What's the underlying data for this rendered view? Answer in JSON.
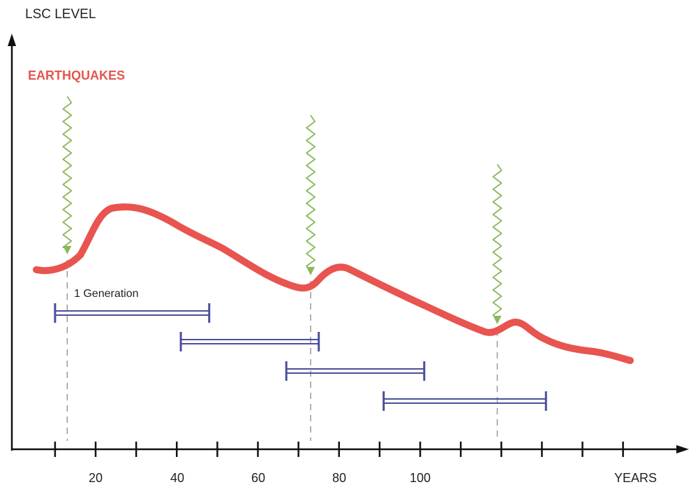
{
  "axes": {
    "y_title": "LSC LEVEL",
    "x_title": "YEARS",
    "x_tick_labels": [
      "20",
      "40",
      "60",
      "80",
      "100"
    ]
  },
  "legend": {
    "earthquakes_label": "EARTHQUAKES",
    "generation_label": "1 Generation"
  },
  "colors": {
    "curve": "#e8544f",
    "earthquake_arrow": "#8ab85a",
    "generation_bar": "#4a4f9a",
    "axis": "#111111",
    "guide": "#999999"
  },
  "chart_data": {
    "type": "line",
    "title": "",
    "xlabel": "YEARS",
    "ylabel": "LSC LEVEL",
    "x_ticks": [
      20,
      40,
      60,
      80,
      100
    ],
    "earthquakes_x": [
      13,
      73,
      119
    ],
    "generations": [
      {
        "start": 10,
        "end": 48
      },
      {
        "start": 41,
        "end": 75
      },
      {
        "start": 67,
        "end": 101
      },
      {
        "start": 91,
        "end": 131
      }
    ]
  }
}
